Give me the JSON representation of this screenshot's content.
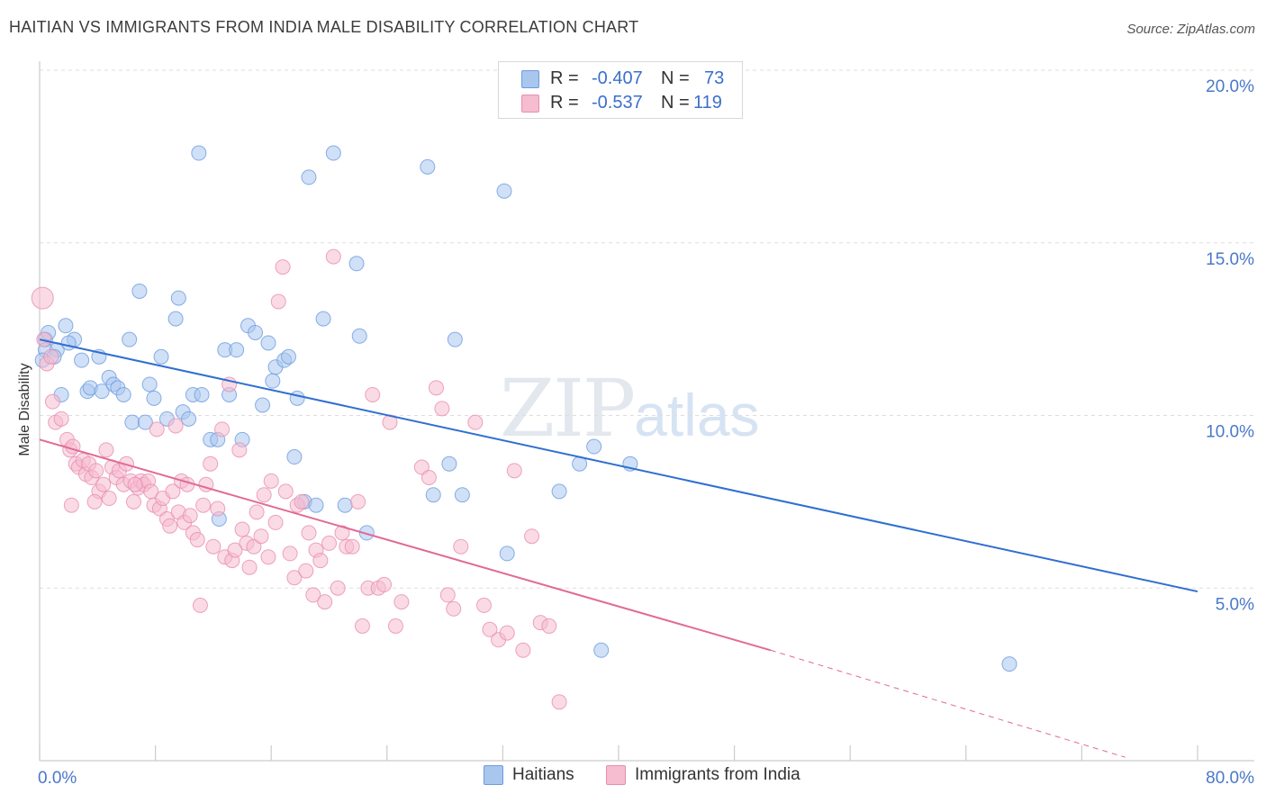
{
  "header": {
    "title": "HAITIAN VS IMMIGRANTS FROM INDIA MALE DISABILITY CORRELATION CHART",
    "source": "Source: ZipAtlas.com"
  },
  "watermark": {
    "zip": "ZIP",
    "atlas": "atlas"
  },
  "stats": {
    "haitians": {
      "r_label": "R =",
      "r_value": "-0.407",
      "n_label": "N =",
      "n_value": "73"
    },
    "india": {
      "r_label": "R =",
      "r_value": "-0.537",
      "n_label": "N =",
      "n_value": "119"
    }
  },
  "legend": {
    "haitians": "Haitians",
    "india": "Immigrants from India"
  },
  "colors": {
    "haitians_fill": "#a9c6ee",
    "haitians_stroke": "#6d9be0",
    "haitians_line": "#2f6fd1",
    "india_fill": "#f6bcd0",
    "india_stroke": "#e98daf",
    "india_line": "#e26a96",
    "tick_text": "#4a78c8",
    "grid": "#dddddd"
  },
  "chart_data": {
    "type": "scatter",
    "title": "HAITIAN VS IMMIGRANTS FROM INDIA MALE DISABILITY CORRELATION CHART",
    "xlabel": "",
    "ylabel": "Male Disability",
    "xlim": [
      0,
      80
    ],
    "ylim": [
      0,
      20
    ],
    "x_tick_labels": [
      "0.0%",
      "80.0%"
    ],
    "y_ticks": [
      5,
      10,
      15,
      20
    ],
    "y_tick_labels": [
      "5.0%",
      "10.0%",
      "15.0%",
      "20.0%"
    ],
    "legend_position": "bottom",
    "series": [
      {
        "name": "Haitians",
        "r": -0.407,
        "n": 73,
        "trend": {
          "x0": 0,
          "y0": 12.2,
          "x1": 80,
          "y1": 4.9
        },
        "points": [
          [
            0.4,
            12.2
          ],
          [
            0.4,
            11.9
          ],
          [
            0.6,
            12.4
          ],
          [
            1.2,
            11.9
          ],
          [
            1.5,
            10.6
          ],
          [
            1.8,
            12.6
          ],
          [
            2.4,
            12.2
          ],
          [
            2.9,
            11.6
          ],
          [
            3.3,
            10.7
          ],
          [
            3.5,
            10.8
          ],
          [
            4.1,
            11.7
          ],
          [
            4.3,
            10.7
          ],
          [
            4.8,
            11.1
          ],
          [
            5.1,
            10.9
          ],
          [
            5.4,
            10.8
          ],
          [
            5.8,
            10.6
          ],
          [
            6.2,
            12.2
          ],
          [
            6.4,
            9.8
          ],
          [
            6.9,
            13.6
          ],
          [
            7.3,
            9.8
          ],
          [
            7.6,
            10.9
          ],
          [
            7.9,
            10.5
          ],
          [
            8.4,
            11.7
          ],
          [
            8.8,
            9.9
          ],
          [
            9.4,
            12.8
          ],
          [
            9.6,
            13.4
          ],
          [
            9.9,
            10.1
          ],
          [
            10.3,
            9.9
          ],
          [
            10.6,
            10.6
          ],
          [
            11.0,
            17.6
          ],
          [
            11.2,
            10.6
          ],
          [
            11.8,
            9.3
          ],
          [
            12.3,
            9.3
          ],
          [
            12.4,
            7.0
          ],
          [
            12.8,
            11.9
          ],
          [
            13.1,
            10.6
          ],
          [
            13.6,
            11.9
          ],
          [
            14.0,
            9.3
          ],
          [
            14.4,
            12.6
          ],
          [
            14.9,
            12.4
          ],
          [
            15.4,
            10.3
          ],
          [
            15.8,
            12.1
          ],
          [
            16.1,
            11.0
          ],
          [
            16.3,
            11.4
          ],
          [
            16.9,
            11.6
          ],
          [
            17.2,
            11.7
          ],
          [
            17.6,
            8.8
          ],
          [
            17.8,
            10.5
          ],
          [
            18.3,
            7.5
          ],
          [
            18.6,
            16.9
          ],
          [
            19.1,
            7.4
          ],
          [
            19.6,
            12.8
          ],
          [
            20.3,
            17.6
          ],
          [
            21.1,
            7.4
          ],
          [
            21.9,
            14.4
          ],
          [
            22.1,
            12.3
          ],
          [
            22.6,
            6.6
          ],
          [
            26.8,
            17.2
          ],
          [
            27.2,
            7.7
          ],
          [
            28.3,
            8.6
          ],
          [
            28.7,
            12.2
          ],
          [
            29.2,
            7.7
          ],
          [
            32.1,
            16.5
          ],
          [
            32.3,
            6.0
          ],
          [
            35.9,
            7.8
          ],
          [
            37.3,
            8.6
          ],
          [
            38.3,
            9.1
          ],
          [
            38.8,
            3.2
          ],
          [
            40.8,
            8.6
          ],
          [
            67.0,
            2.8
          ],
          [
            0.2,
            11.6
          ],
          [
            1.0,
            11.7
          ],
          [
            2.0,
            12.1
          ]
        ]
      },
      {
        "name": "Immigrants from India",
        "r": -0.537,
        "n": 119,
        "trend": {
          "x0": 0,
          "y0": 9.3,
          "x1": 50.5,
          "y1": 3.2,
          "dashed_to": {
            "x": 75,
            "y": 0.1
          }
        },
        "points": [
          [
            0.2,
            13.4
          ],
          [
            0.3,
            12.2
          ],
          [
            0.5,
            11.5
          ],
          [
            0.8,
            11.7
          ],
          [
            0.9,
            10.4
          ],
          [
            1.1,
            9.8
          ],
          [
            1.5,
            9.9
          ],
          [
            1.9,
            9.3
          ],
          [
            2.1,
            9.0
          ],
          [
            2.3,
            9.1
          ],
          [
            2.5,
            8.6
          ],
          [
            2.7,
            8.5
          ],
          [
            3.0,
            8.7
          ],
          [
            3.2,
            8.3
          ],
          [
            3.4,
            8.6
          ],
          [
            3.6,
            8.2
          ],
          [
            3.9,
            8.4
          ],
          [
            4.1,
            7.8
          ],
          [
            4.4,
            8.0
          ],
          [
            4.6,
            9.0
          ],
          [
            4.8,
            7.6
          ],
          [
            5.0,
            8.5
          ],
          [
            5.3,
            8.2
          ],
          [
            5.5,
            8.4
          ],
          [
            5.8,
            8.0
          ],
          [
            6.0,
            8.6
          ],
          [
            6.3,
            8.1
          ],
          [
            6.5,
            7.5
          ],
          [
            6.8,
            7.9
          ],
          [
            7.0,
            8.1
          ],
          [
            7.2,
            8.0
          ],
          [
            7.5,
            8.1
          ],
          [
            7.7,
            7.8
          ],
          [
            7.9,
            7.4
          ],
          [
            8.1,
            9.6
          ],
          [
            8.3,
            7.3
          ],
          [
            8.5,
            7.6
          ],
          [
            8.8,
            7.0
          ],
          [
            9.0,
            6.8
          ],
          [
            9.2,
            7.8
          ],
          [
            9.4,
            9.7
          ],
          [
            9.6,
            7.2
          ],
          [
            9.8,
            8.1
          ],
          [
            10.0,
            6.9
          ],
          [
            10.2,
            8.0
          ],
          [
            10.4,
            7.1
          ],
          [
            10.6,
            6.6
          ],
          [
            10.9,
            6.4
          ],
          [
            11.1,
            4.5
          ],
          [
            11.3,
            7.4
          ],
          [
            11.5,
            8.0
          ],
          [
            11.8,
            8.6
          ],
          [
            12.0,
            6.2
          ],
          [
            12.3,
            7.3
          ],
          [
            12.6,
            9.6
          ],
          [
            12.8,
            5.9
          ],
          [
            13.1,
            10.9
          ],
          [
            13.3,
            5.8
          ],
          [
            13.5,
            6.1
          ],
          [
            13.8,
            9.0
          ],
          [
            14.0,
            6.7
          ],
          [
            14.3,
            6.3
          ],
          [
            14.5,
            5.6
          ],
          [
            14.8,
            6.2
          ],
          [
            15.0,
            7.2
          ],
          [
            15.3,
            6.5
          ],
          [
            15.5,
            7.7
          ],
          [
            15.8,
            5.9
          ],
          [
            16.0,
            8.1
          ],
          [
            16.3,
            6.9
          ],
          [
            16.5,
            13.3
          ],
          [
            16.8,
            14.3
          ],
          [
            17.0,
            7.8
          ],
          [
            17.3,
            6.0
          ],
          [
            17.6,
            5.3
          ],
          [
            17.8,
            7.4
          ],
          [
            18.1,
            7.5
          ],
          [
            18.4,
            5.5
          ],
          [
            18.6,
            6.6
          ],
          [
            18.9,
            4.8
          ],
          [
            19.1,
            6.1
          ],
          [
            19.4,
            5.8
          ],
          [
            19.7,
            4.6
          ],
          [
            20.0,
            6.3
          ],
          [
            20.3,
            14.6
          ],
          [
            20.6,
            5.0
          ],
          [
            20.9,
            6.6
          ],
          [
            21.2,
            6.2
          ],
          [
            21.6,
            6.2
          ],
          [
            22.0,
            7.5
          ],
          [
            22.3,
            3.9
          ],
          [
            22.7,
            5.0
          ],
          [
            23.0,
            10.6
          ],
          [
            23.4,
            5.0
          ],
          [
            23.8,
            5.1
          ],
          [
            24.2,
            9.8
          ],
          [
            24.6,
            3.9
          ],
          [
            25.0,
            4.6
          ],
          [
            26.4,
            8.5
          ],
          [
            26.9,
            8.2
          ],
          [
            27.4,
            10.8
          ],
          [
            27.8,
            10.2
          ],
          [
            28.2,
            4.8
          ],
          [
            28.6,
            4.4
          ],
          [
            29.1,
            6.2
          ],
          [
            30.1,
            9.8
          ],
          [
            30.7,
            4.5
          ],
          [
            31.1,
            3.8
          ],
          [
            31.7,
            3.5
          ],
          [
            32.3,
            3.7
          ],
          [
            32.8,
            8.4
          ],
          [
            33.4,
            3.2
          ],
          [
            34.0,
            6.5
          ],
          [
            34.6,
            4.0
          ],
          [
            35.2,
            3.9
          ],
          [
            35.9,
            1.7
          ],
          [
            3.8,
            7.5
          ],
          [
            2.2,
            7.4
          ],
          [
            6.6,
            8.0
          ]
        ]
      }
    ]
  }
}
